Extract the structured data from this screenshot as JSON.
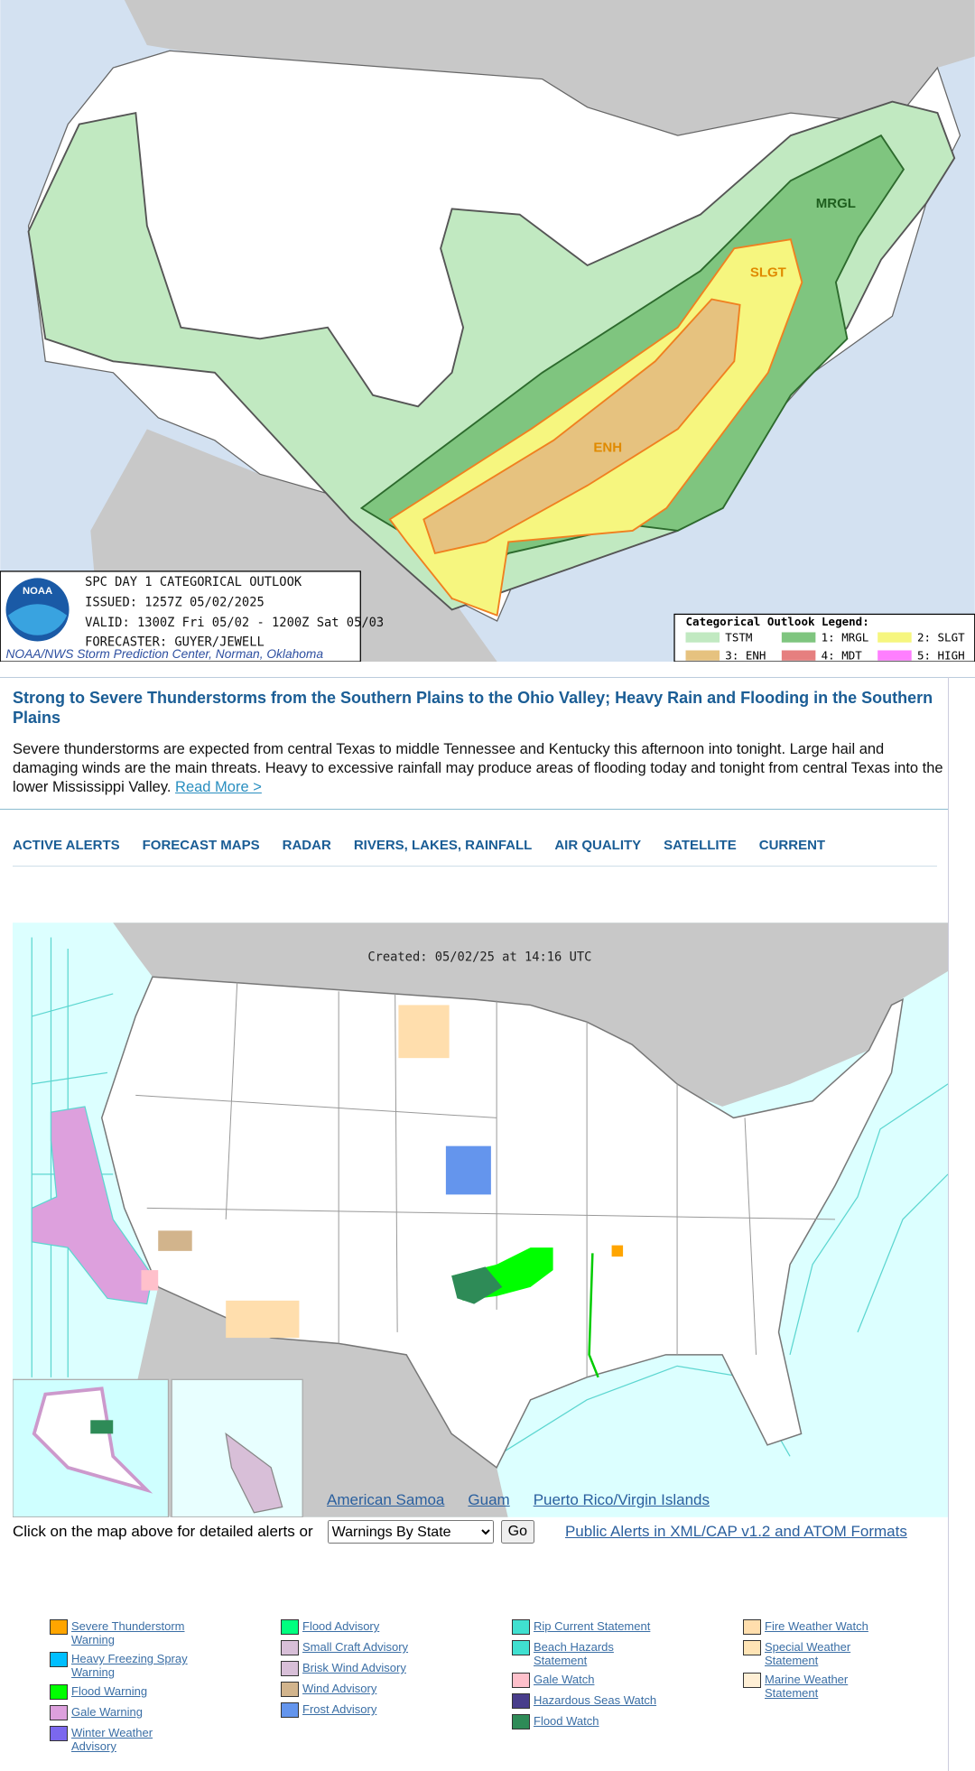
{
  "outlook_map": {
    "area_labels": [
      "MRGL",
      "SLGT",
      "ENH"
    ],
    "logo_text": "NOAA",
    "info": {
      "title": "SPC DAY 1 CATEGORICAL OUTLOOK",
      "issued": "ISSUED: 1257Z 05/02/2025",
      "valid": "VALID: 1300Z Fri 05/02 - 1200Z Sat 05/03",
      "forecaster": "FORECASTER: GUYER/JEWELL",
      "credit": "NOAA/NWS Storm Prediction Center, Norman, Oklahoma"
    },
    "legend": {
      "title": "Categorical Outlook Legend:",
      "items": [
        {
          "label": "TSTM",
          "color": "#c1e9c1"
        },
        {
          "label": "1: MRGL",
          "color": "#7fc57f"
        },
        {
          "label": "2: SLGT",
          "color": "#f6f67f"
        },
        {
          "label": "3: ENH",
          "color": "#e6c27f"
        },
        {
          "label": "4: MDT",
          "color": "#e67f7f"
        },
        {
          "label": "5: HIGH",
          "color": "#ff7fff"
        }
      ]
    }
  },
  "headline": {
    "title": "Strong to Severe Thunderstorms from the Southern Plains to the Ohio Valley; Heavy Rain and Flooding in the Southern Plains",
    "body": "Severe thunderstorms are expected from central Texas to middle Tennessee and Kentucky this afternoon into tonight. Large hail and damaging winds are the main threats. Heavy to excessive rainfall may produce areas of flooding today and tonight from central Texas into the lower Mississippi Valley.",
    "link": "Read More >"
  },
  "nav": [
    "ACTIVE ALERTS",
    "FORECAST MAPS",
    "RADAR",
    "RIVERS, LAKES, RAINFALL",
    "AIR QUALITY",
    "SATELLITE",
    "CURRENT"
  ],
  "alerts_map": {
    "created": "Created: 05/02/25 at 14:16 UTC",
    "links": [
      "American Samoa",
      "Guam",
      "Puerto Rico/Virgin Islands"
    ]
  },
  "controls": {
    "prompt": "Click on the map above for detailed alerts or",
    "select": "Warnings By State",
    "button": "Go",
    "feed_link": "Public Alerts in XML/CAP v1.2 and ATOM Formats"
  },
  "legend": [
    [
      {
        "label": "Severe Thunderstorm Warning",
        "color": "#ffa500"
      },
      {
        "label": "Heavy Freezing Spray Warning",
        "color": "#00bfff"
      },
      {
        "label": "Flood Warning",
        "color": "#00ff00"
      },
      {
        "label": "Gale Warning",
        "color": "#dda0dd"
      },
      {
        "label": "Winter Weather Advisory",
        "color": "#7b68ee"
      }
    ],
    [
      {
        "label": "Flood Advisory",
        "color": "#00ff7f"
      },
      {
        "label": "Small Craft Advisory",
        "color": "#d8bfd8"
      },
      {
        "label": "Brisk Wind Advisory",
        "color": "#d8bfd8"
      },
      {
        "label": "Wind Advisory",
        "color": "#d2b48c"
      },
      {
        "label": "Frost Advisory",
        "color": "#6495ed"
      }
    ],
    [
      {
        "label": "Rip Current Statement",
        "color": "#40e0d0"
      },
      {
        "label": "Beach Hazards Statement",
        "color": "#40e0d0"
      },
      {
        "label": "Gale Watch",
        "color": "#ffc0cb"
      },
      {
        "label": "Hazardous Seas Watch",
        "color": "#483d8b"
      },
      {
        "label": "Flood Watch",
        "color": "#2e8b57"
      }
    ],
    [
      {
        "label": "Fire Weather Watch",
        "color": "#ffdead"
      },
      {
        "label": "Special Weather Statement",
        "color": "#ffe4b5"
      },
      {
        "label": "Marine Weather Statement",
        "color": "#ffefd5"
      }
    ]
  ]
}
